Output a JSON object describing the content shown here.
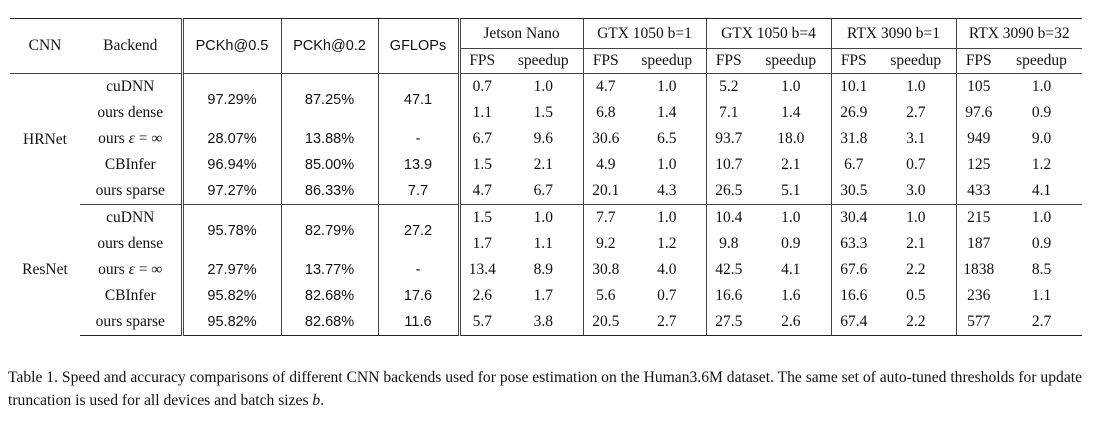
{
  "table": {
    "header": {
      "cnn": "CNN",
      "backend": "Backend",
      "pckh05": "PCKh@0.5",
      "pckh02": "PCKh@0.2",
      "gflops": "GFLOPs",
      "devices": [
        "Jetson Nano",
        "GTX 1050 b=1",
        "GTX 1050 b=4",
        "RTX 3090 b=1",
        "RTX 3090 b=32"
      ],
      "fps": "FPS",
      "speedup": "speedup"
    },
    "groups": [
      {
        "cnn": "HRNet",
        "dense_pckh05": "97.29%",
        "dense_pckh02": "87.25%",
        "dense_gflops": "47.1",
        "rows": [
          {
            "backend": "cuDNN",
            "vals": [
              "0.7",
              "1.0",
              "4.7",
              "1.0",
              "5.2",
              "1.0",
              "10.1",
              "1.0",
              "105",
              "1.0"
            ]
          },
          {
            "backend": "ours dense",
            "vals": [
              "1.1",
              "1.5",
              "6.8",
              "1.4",
              "7.1",
              "1.4",
              "26.9",
              "2.7",
              "97.6",
              "0.9"
            ]
          },
          {
            "backend_prefix": "ours ",
            "backend_eps": "ε",
            "backend_suffix": " = ∞",
            "pckh05": "28.07%",
            "pckh02": "13.88%",
            "gflops": "-",
            "vals": [
              "6.7",
              "9.6",
              "30.6",
              "6.5",
              "93.7",
              "18.0",
              "31.8",
              "3.1",
              "949",
              "9.0"
            ]
          },
          {
            "backend": "CBInfer",
            "pckh05": "96.94%",
            "pckh02": "85.00%",
            "gflops": "13.9",
            "vals": [
              "1.5",
              "2.1",
              "4.9",
              "1.0",
              "10.7",
              "2.1",
              "6.7",
              "0.7",
              "125",
              "1.2"
            ]
          },
          {
            "backend": "ours sparse",
            "pckh05": "97.27%",
            "pckh02": "86.33%",
            "gflops": "7.7",
            "vals": [
              "4.7",
              "6.7",
              "20.1",
              "4.3",
              "26.5",
              "5.1",
              "30.5",
              "3.0",
              "433",
              "4.1"
            ]
          }
        ]
      },
      {
        "cnn": "ResNet",
        "dense_pckh05": "95.78%",
        "dense_pckh02": "82.79%",
        "dense_gflops": "27.2",
        "rows": [
          {
            "backend": "cuDNN",
            "vals": [
              "1.5",
              "1.0",
              "7.7",
              "1.0",
              "10.4",
              "1.0",
              "30.4",
              "1.0",
              "215",
              "1.0"
            ]
          },
          {
            "backend": "ours dense",
            "vals": [
              "1.7",
              "1.1",
              "9.2",
              "1.2",
              "9.8",
              "0.9",
              "63.3",
              "2.1",
              "187",
              "0.9"
            ]
          },
          {
            "backend_prefix": "ours ",
            "backend_eps": "ε",
            "backend_suffix": " = ∞",
            "pckh05": "27.97%",
            "pckh02": "13.77%",
            "gflops": "-",
            "vals": [
              "13.4",
              "8.9",
              "30.8",
              "4.0",
              "42.5",
              "4.1",
              "67.6",
              "2.2",
              "1838",
              "8.5"
            ]
          },
          {
            "backend": "CBInfer",
            "pckh05": "95.82%",
            "pckh02": "82.68%",
            "gflops": "17.6",
            "vals": [
              "2.6",
              "1.7",
              "5.6",
              "0.7",
              "16.6",
              "1.6",
              "16.6",
              "0.5",
              "236",
              "1.1"
            ]
          },
          {
            "backend": "ours sparse",
            "pckh05": "95.82%",
            "pckh02": "82.68%",
            "gflops": "11.6",
            "vals": [
              "5.7",
              "3.8",
              "20.5",
              "2.7",
              "27.5",
              "2.6",
              "67.4",
              "2.2",
              "577",
              "2.7"
            ]
          }
        ]
      }
    ]
  },
  "caption": {
    "text": "Table 1. Speed and accuracy comparisons of different CNN backends used for pose estimation on the Human3.6M dataset. The same set of auto-tuned thresholds for update truncation is used for all devices and batch sizes ",
    "var": "b",
    "end": "."
  }
}
